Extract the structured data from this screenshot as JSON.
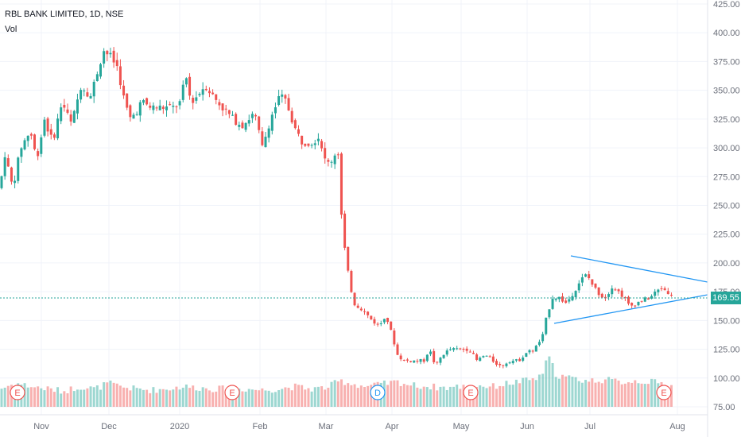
{
  "header": {
    "title": "RBL BANK LIMITED, 1D, NSE",
    "volume_label": "Vol"
  },
  "last_price": "169.55",
  "event_markers": [
    {
      "label": "E",
      "type": "earnings",
      "color": "#ef5350"
    },
    {
      "label": "E",
      "type": "earnings",
      "color": "#ef5350"
    },
    {
      "label": "D",
      "type": "dividend",
      "color": "#2196f3"
    },
    {
      "label": "E",
      "type": "earnings",
      "color": "#ef5350"
    },
    {
      "label": "E",
      "type": "earnings",
      "color": "#ef5350"
    }
  ],
  "colors": {
    "up": "#26a69a",
    "down": "#ef5350",
    "trendline": "#2196f3",
    "price_line": "#26a69a"
  },
  "chart_data": {
    "type": "candlestick",
    "y_ticks": [
      "425.00",
      "400.00",
      "375.00",
      "350.00",
      "325.00",
      "300.00",
      "275.00",
      "250.00",
      "225.00",
      "200.00",
      "175.00",
      "150.00",
      "125.00",
      "100.00",
      "75.00"
    ],
    "x_ticks": [
      "Nov",
      "Dec",
      "2020",
      "Feb",
      "Mar",
      "Apr",
      "May",
      "Jun",
      "Jul",
      "Aug"
    ],
    "ylim": [
      75,
      425
    ],
    "price_path": [
      [
        0,
        265
      ],
      [
        6,
        295
      ],
      [
        16,
        265
      ],
      [
        26,
        300
      ],
      [
        38,
        315
      ],
      [
        46,
        290
      ],
      [
        56,
        325
      ],
      [
        66,
        305
      ],
      [
        78,
        340
      ],
      [
        90,
        320
      ],
      [
        102,
        355
      ],
      [
        114,
        345
      ],
      [
        124,
        370
      ],
      [
        130,
        385
      ],
      [
        138,
        380
      ],
      [
        148,
        370
      ],
      [
        155,
        345
      ],
      [
        163,
        325
      ],
      [
        170,
        330
      ],
      [
        178,
        340
      ],
      [
        190,
        335
      ],
      [
        205,
        335
      ],
      [
        218,
        335
      ],
      [
        228,
        340
      ],
      [
        233,
        365
      ],
      [
        240,
        340
      ],
      [
        248,
        345
      ],
      [
        258,
        355
      ],
      [
        268,
        345
      ],
      [
        280,
        335
      ],
      [
        293,
        325
      ],
      [
        305,
        320
      ],
      [
        320,
        330
      ],
      [
        330,
        300
      ],
      [
        340,
        325
      ],
      [
        352,
        345
      ],
      [
        360,
        340
      ],
      [
        372,
        315
      ],
      [
        380,
        305
      ],
      [
        392,
        305
      ],
      [
        402,
        310
      ],
      [
        410,
        285
      ],
      [
        418,
        290
      ],
      [
        425,
        300
      ],
      [
        429,
        245
      ],
      [
        433,
        215
      ],
      [
        438,
        190
      ],
      [
        445,
        165
      ],
      [
        455,
        160
      ],
      [
        468,
        150
      ],
      [
        477,
        145
      ],
      [
        485,
        155
      ],
      [
        492,
        140
      ],
      [
        500,
        120
      ],
      [
        508,
        115
      ],
      [
        517,
        115
      ],
      [
        525,
        115
      ],
      [
        533,
        115
      ],
      [
        540,
        125
      ],
      [
        548,
        110
      ],
      [
        556,
        120
      ],
      [
        566,
        125
      ],
      [
        575,
        125
      ],
      [
        583,
        125
      ],
      [
        590,
        125
      ],
      [
        600,
        115
      ],
      [
        610,
        120
      ],
      [
        620,
        115
      ],
      [
        630,
        110
      ],
      [
        640,
        115
      ],
      [
        652,
        115
      ],
      [
        662,
        122
      ],
      [
        672,
        125
      ],
      [
        682,
        135
      ],
      [
        688,
        155
      ],
      [
        695,
        170
      ],
      [
        703,
        170
      ],
      [
        712,
        165
      ],
      [
        722,
        175
      ],
      [
        730,
        185
      ],
      [
        738,
        190
      ],
      [
        746,
        180
      ],
      [
        755,
        172
      ],
      [
        762,
        170
      ],
      [
        770,
        180
      ],
      [
        778,
        175
      ],
      [
        785,
        170
      ],
      [
        792,
        162
      ],
      [
        800,
        165
      ],
      [
        810,
        168
      ],
      [
        818,
        170
      ],
      [
        825,
        175
      ],
      [
        832,
        178
      ],
      [
        840,
        175
      ],
      [
        846,
        169.55
      ]
    ],
    "volume_profile": [
      [
        0,
        90
      ],
      [
        20,
        95
      ],
      [
        40,
        92
      ],
      [
        60,
        90
      ],
      [
        80,
        88
      ],
      [
        100,
        92
      ],
      [
        120,
        90
      ],
      [
        136,
        95
      ],
      [
        150,
        92
      ],
      [
        170,
        90
      ],
      [
        190,
        89
      ],
      [
        210,
        90
      ],
      [
        230,
        92
      ],
      [
        250,
        91
      ],
      [
        270,
        90
      ],
      [
        290,
        90
      ],
      [
        310,
        90
      ],
      [
        330,
        89
      ],
      [
        350,
        90
      ],
      [
        370,
        92
      ],
      [
        390,
        90
      ],
      [
        410,
        91
      ],
      [
        428,
        97
      ],
      [
        440,
        95
      ],
      [
        460,
        92
      ],
      [
        480,
        94
      ],
      [
        500,
        96
      ],
      [
        520,
        93
      ],
      [
        540,
        92
      ],
      [
        560,
        91
      ],
      [
        580,
        92
      ],
      [
        600,
        93
      ],
      [
        620,
        92
      ],
      [
        640,
        95
      ],
      [
        660,
        97
      ],
      [
        680,
        100
      ],
      [
        690,
        118
      ],
      [
        700,
        102
      ],
      [
        720,
        99
      ],
      [
        740,
        97
      ],
      [
        760,
        98
      ],
      [
        780,
        96
      ],
      [
        800,
        97
      ],
      [
        820,
        96
      ],
      [
        846,
        93
      ]
    ],
    "trendlines": [
      {
        "from": {
          "x": "2020-06-23",
          "y": 207
        },
        "to": {
          "x": "2020-08-03",
          "y": 183
        }
      },
      {
        "from": {
          "x": "2020-06-11",
          "y": 149
        },
        "to": {
          "x": "2020-08-03",
          "y": 170
        }
      }
    ],
    "last_price": 169.55
  }
}
